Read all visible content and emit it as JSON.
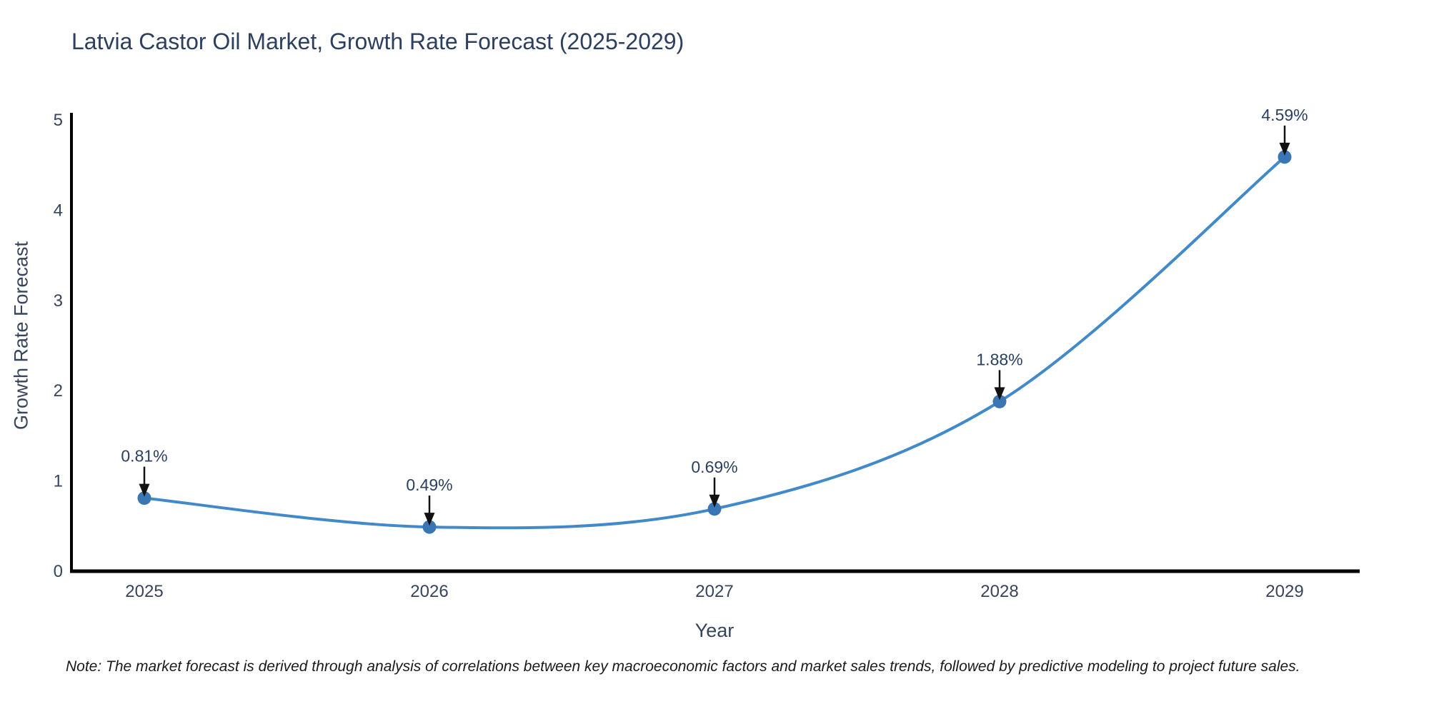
{
  "title": "Latvia Castor Oil Market, Growth Rate Forecast (2025-2029)",
  "note": "Note: The market forecast is derived through analysis of correlations between key macroeconomic factors and market sales trends, followed by predictive modeling to project future sales.",
  "chart_data": {
    "type": "line",
    "title": "Latvia Castor Oil Market, Growth Rate Forecast (2025-2029)",
    "xlabel": "Year",
    "ylabel": "Growth Rate Forecast",
    "categories": [
      "2025",
      "2026",
      "2027",
      "2028",
      "2029"
    ],
    "series": [
      {
        "name": "Growth Rate Forecast",
        "values": [
          0.81,
          0.49,
          0.69,
          1.88,
          4.59
        ]
      }
    ],
    "point_labels": [
      "0.81%",
      "0.49%",
      "0.69%",
      "1.88%",
      "4.59%"
    ],
    "yticks": [
      0,
      1,
      2,
      3,
      4,
      5
    ],
    "ylim": [
      0,
      5
    ],
    "grid": false,
    "legend_position": "none",
    "line_style": "smooth-spline",
    "marker_style": "filled-circle",
    "annotation_style": "value-label-with-down-arrow",
    "colors": {
      "line": "#4189c9",
      "marker": "#3a76b3",
      "arrow": "#111111",
      "title_text": "#2d3f5f",
      "tick_text": "#36455c",
      "annotation_text": "#2a3f5f",
      "axis_spine": "#000000",
      "note_text": "#1a1a1a",
      "background": "#ffffff"
    }
  }
}
